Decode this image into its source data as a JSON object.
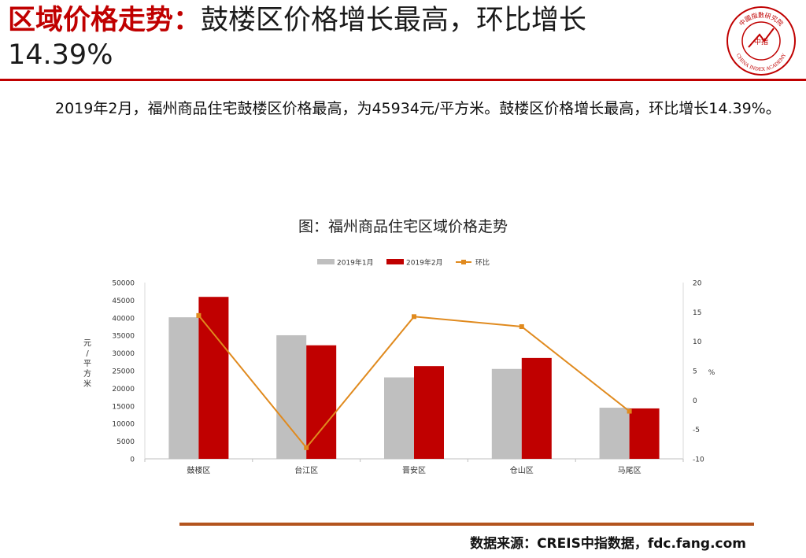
{
  "header": {
    "title_accent": "区域价格走势：",
    "title_main": "鼓楼区价格增长最高，环比增长",
    "title_line2": "14.39%",
    "accent_color": "#c00000",
    "logo_center_text": "中指",
    "logo_top_text": "中國指數研究院",
    "logo_bottom_text": "CHINA INDEX ACADEMY"
  },
  "body": {
    "paragraph": "2019年2月，福州商品住宅鼓楼区价格最高，为45934元/平方米。鼓楼区价格增长最高，环比增长14.39%。"
  },
  "footer": {
    "source": "数据来源：CREIS中指数据，fdc.fang.com"
  },
  "chart_data": {
    "type": "bar",
    "title": "图：福州商品住宅区域价格走势",
    "categories": [
      "鼓楼区",
      "台江区",
      "晋安区",
      "仓山区",
      "马尾区"
    ],
    "series": [
      {
        "name": "2019年1月",
        "type": "bar",
        "axis": "left",
        "color": "#bfbfbf",
        "values": [
          40150,
          35050,
          23100,
          25500,
          14500
        ]
      },
      {
        "name": "2019年2月",
        "type": "bar",
        "axis": "left",
        "color": "#c00000",
        "values": [
          45934,
          32200,
          26300,
          28600,
          14300
        ]
      },
      {
        "name": "环比",
        "type": "line",
        "axis": "right",
        "color": "#e08a1e",
        "values": [
          14.39,
          -8.1,
          14.2,
          12.5,
          -1.9
        ]
      }
    ],
    "ylabel": "元/平方米",
    "ylabel_chars": [
      "元",
      "/",
      "平",
      "方",
      "米"
    ],
    "y2label": "%",
    "ylim": [
      0,
      50000
    ],
    "yticks": [
      "0",
      "5000",
      "10000",
      "15000",
      "20000",
      "25000",
      "30000",
      "35000",
      "40000",
      "45000",
      "50000"
    ],
    "y2lim": [
      -10,
      20
    ],
    "y2ticks": [
      "-10",
      "-5",
      "0",
      "5",
      "10",
      "15",
      "20"
    ],
    "legend_position": "top",
    "grid": false
  }
}
